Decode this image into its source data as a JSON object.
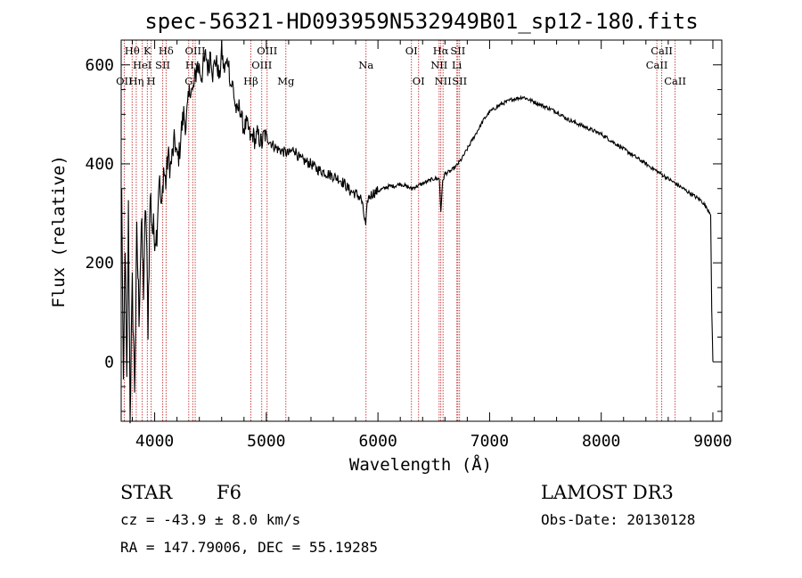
{
  "chart_data": {
    "type": "line",
    "title": "spec-56321-HD093959N532949B01_sp12-180.fits",
    "xlabel": "Wavelength (Å)",
    "ylabel": "Flux (relative)",
    "xlim": [
      3700,
      9080
    ],
    "ylim": [
      -120,
      650
    ],
    "xticks": [
      4000,
      5000,
      6000,
      7000,
      8000,
      9000
    ],
    "yticks": [
      0,
      200,
      400,
      600
    ],
    "xtick_labels": [
      "4000",
      "5000",
      "6000",
      "7000",
      "8000",
      "9000"
    ],
    "ytick_labels": [
      "0",
      "200",
      "400",
      "600"
    ],
    "series": [
      {
        "name": "spectrum",
        "x": [
          3705,
          3720,
          3735,
          3750,
          3765,
          3780,
          3800,
          3820,
          3840,
          3860,
          3880,
          3900,
          3920,
          3940,
          3960,
          3980,
          4000,
          4020,
          4040,
          4060,
          4080,
          4100,
          4120,
          4140,
          4160,
          4180,
          4200,
          4220,
          4240,
          4260,
          4280,
          4300,
          4320,
          4340,
          4360,
          4380,
          4400,
          4420,
          4440,
          4460,
          4480,
          4500,
          4520,
          4540,
          4560,
          4580,
          4600,
          4620,
          4640,
          4660,
          4680,
          4700,
          4720,
          4740,
          4760,
          4780,
          4800,
          4820,
          4840,
          4860,
          4880,
          4900,
          4920,
          4940,
          4960,
          4980,
          5000,
          5050,
          5100,
          5150,
          5200,
          5250,
          5300,
          5350,
          5400,
          5450,
          5500,
          5550,
          5600,
          5650,
          5700,
          5750,
          5800,
          5850,
          5890,
          5910,
          5950,
          6000,
          6050,
          6100,
          6150,
          6200,
          6250,
          6300,
          6350,
          6400,
          6450,
          6500,
          6550,
          6563,
          6580,
          6600,
          6650,
          6700,
          6750,
          6800,
          6850,
          6900,
          6950,
          7000,
          7100,
          7200,
          7300,
          7350,
          7400,
          7500,
          7600,
          7700,
          7800,
          7900,
          8000,
          8100,
          8200,
          8300,
          8400,
          8500,
          8600,
          8700,
          8800,
          8900,
          8980,
          8990,
          9000
        ],
        "y": [
          350,
          -80,
          250,
          -60,
          300,
          -100,
          150,
          -50,
          250,
          100,
          280,
          150,
          320,
          80,
          340,
          270,
          250,
          260,
          380,
          300,
          390,
          360,
          420,
          390,
          420,
          450,
          410,
          420,
          470,
          500,
          480,
          520,
          560,
          540,
          570,
          600,
          590,
          580,
          600,
          620,
          590,
          630,
          580,
          610,
          600,
          570,
          630,
          590,
          600,
          610,
          560,
          560,
          520,
          500,
          520,
          490,
          470,
          480,
          470,
          450,
          460,
          445,
          460,
          450,
          440,
          460,
          455,
          440,
          430,
          425,
          420,
          430,
          410,
          405,
          400,
          390,
          385,
          380,
          375,
          370,
          360,
          345,
          340,
          330,
          275,
          330,
          340,
          345,
          350,
          355,
          355,
          360,
          355,
          350,
          355,
          360,
          365,
          370,
          370,
          305,
          365,
          380,
          385,
          395,
          410,
          430,
          450,
          470,
          490,
          505,
          520,
          530,
          535,
          530,
          525,
          515,
          505,
          490,
          480,
          470,
          460,
          445,
          430,
          415,
          400,
          385,
          370,
          355,
          340,
          325,
          300,
          100,
          0
        ]
      }
    ],
    "line_labels": [
      {
        "label": "Hθ",
        "x": 3798,
        "row": 1
      },
      {
        "label": "OII",
        "x": 3727,
        "row": 3
      },
      {
        "label": "Hη",
        "x": 3835,
        "row": 3
      },
      {
        "label": "HeI",
        "x": 3889,
        "row": 2
      },
      {
        "label": "K",
        "x": 3934,
        "row": 1
      },
      {
        "label": "H",
        "x": 3969,
        "row": 3
      },
      {
        "label": "SII",
        "x": 4072,
        "row": 2
      },
      {
        "label": "Hδ",
        "x": 4102,
        "row": 1
      },
      {
        "label": "G",
        "x": 4305,
        "row": 3
      },
      {
        "label": "OIII",
        "x": 4363,
        "row": 1
      },
      {
        "label": "Hγ",
        "x": 4341,
        "row": 2
      },
      {
        "label": "Hβ",
        "x": 4861,
        "row": 3
      },
      {
        "label": "OIII",
        "x": 4959,
        "row": 2
      },
      {
        "label": "OIII",
        "x": 5007,
        "row": 1
      },
      {
        "label": "Mg",
        "x": 5175,
        "row": 3
      },
      {
        "label": "Na",
        "x": 5893,
        "row": 2
      },
      {
        "label": "OI",
        "x": 6300,
        "row": 1
      },
      {
        "label": "OI",
        "x": 6364,
        "row": 3
      },
      {
        "label": "NII",
        "x": 6548,
        "row": 2
      },
      {
        "label": "Hα",
        "x": 6563,
        "row": 1
      },
      {
        "label": "NII",
        "x": 6583,
        "row": 3
      },
      {
        "label": "SII",
        "x": 6716,
        "row": 1
      },
      {
        "label": "Li",
        "x": 6707,
        "row": 2
      },
      {
        "label": "SII",
        "x": 6731,
        "row": 3
      },
      {
        "label": "CaII",
        "x": 8498,
        "row": 2
      },
      {
        "label": "CaII",
        "x": 8542,
        "row": 1
      },
      {
        "label": "CaII",
        "x": 8662,
        "row": 3
      }
    ]
  },
  "info": {
    "class": "STAR",
    "subclass": "F6",
    "survey": "LAMOST DR3",
    "cz": "cz = -43.9 ± 8.0 km/s",
    "obs_date": "Obs-Date: 20130128",
    "radec": "RA = 147.79006, DEC =  55.19285"
  }
}
